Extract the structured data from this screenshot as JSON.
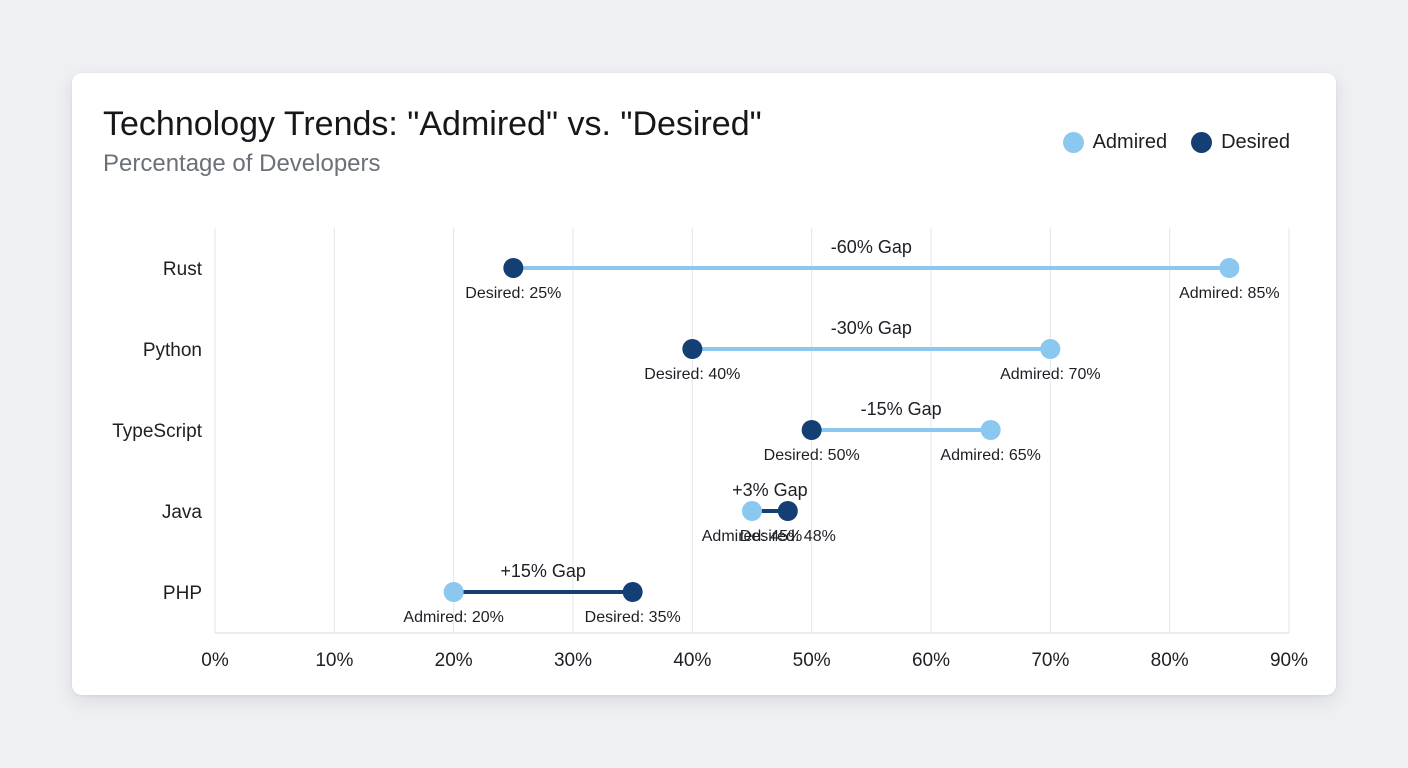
{
  "title": "Technology Trends: \"Admired\" vs. \"Desired\"",
  "subtitle": "Percentage of Developers",
  "legend": {
    "admired": "Admired",
    "desired": "Desired"
  },
  "colors": {
    "admired": "#8ac8ef",
    "desired": "#133f75",
    "grid": "#e3e5e8"
  },
  "chart_data": {
    "type": "dumbbell",
    "title": "Technology Trends: \"Admired\" vs. \"Desired\"",
    "subtitle": "Percentage of Developers",
    "xlim": [
      0,
      90
    ],
    "x_ticks": [
      0,
      10,
      20,
      30,
      40,
      50,
      60,
      70,
      80,
      90
    ],
    "x_tick_labels": [
      "0%",
      "10%",
      "20%",
      "30%",
      "40%",
      "50%",
      "60%",
      "70%",
      "80%",
      "90%"
    ],
    "grid": "vertical",
    "legend_position": "top-right",
    "series_names": [
      "Admired",
      "Desired"
    ],
    "categories": [
      "Rust",
      "Python",
      "TypeScript",
      "Java",
      "PHP"
    ],
    "rows": [
      {
        "language": "Rust",
        "admired": 85,
        "desired": 25,
        "gap_label": "-60% Gap",
        "admired_label": "Admired: 85%",
        "desired_label": "Desired: 25%"
      },
      {
        "language": "Python",
        "admired": 70,
        "desired": 40,
        "gap_label": "-30% Gap",
        "admired_label": "Admired: 70%",
        "desired_label": "Desired: 40%"
      },
      {
        "language": "TypeScript",
        "admired": 65,
        "desired": 50,
        "gap_label": "-15% Gap",
        "admired_label": "Admired: 65%",
        "desired_label": "Desired: 50%"
      },
      {
        "language": "Java",
        "admired": 45,
        "desired": 48,
        "gap_label": "+3% Gap",
        "admired_label": "Admired: 45%",
        "desired_label": "Desired: 48%"
      },
      {
        "language": "PHP",
        "admired": 20,
        "desired": 35,
        "gap_label": "+15% Gap",
        "admired_label": "Admired: 20%",
        "desired_label": "Desired: 35%"
      }
    ]
  }
}
